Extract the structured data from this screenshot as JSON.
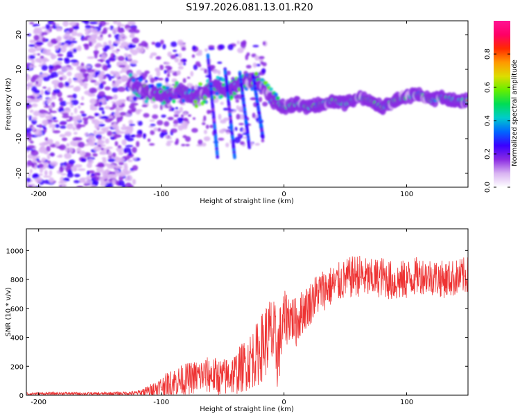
{
  "title": "S197.2026.081.13.01.R20",
  "chart_data": [
    {
      "type": "heatmap",
      "description_id": "spectrogram",
      "xlabel": "Height of straight line (km)",
      "ylabel": "Frequency (Hz)",
      "xlim": [
        -210,
        150
      ],
      "ylim": [
        -24,
        24
      ],
      "xticks": [
        -200,
        -100,
        0,
        100
      ],
      "yticks": [
        -20,
        -10,
        0,
        10,
        20
      ],
      "colorbar": {
        "label": "Normalized spectral amplitude",
        "range": [
          0.0,
          1.0
        ],
        "ticks": [
          0.0,
          0.2,
          0.4,
          0.6,
          0.8
        ],
        "colors": [
          "#ffffff",
          "#d9b3f2",
          "#8a2be2",
          "#3a00ff",
          "#0066ff",
          "#00cccc",
          "#00dd55",
          "#66ee00",
          "#dddd00",
          "#ff9900",
          "#ff2a00",
          "#ff0066",
          "#ff1493"
        ]
      },
      "ridge": {
        "x": [
          -125,
          -115,
          -105,
          -95,
          -85,
          -75,
          -65,
          -55,
          -45,
          -35,
          -25,
          -20,
          -15,
          -10,
          -5,
          0,
          5,
          10,
          20,
          30,
          40,
          50,
          60,
          70,
          80,
          90,
          100,
          110,
          120,
          130,
          140,
          150
        ],
        "y": [
          6,
          4,
          3,
          2,
          4,
          2,
          3,
          5,
          4,
          6,
          7,
          6,
          4,
          1,
          0,
          -1,
          -0.5,
          0,
          -1,
          0,
          1,
          0,
          2,
          1,
          -1,
          1,
          2,
          3,
          1,
          2,
          1,
          1
        ]
      }
    },
    {
      "type": "line",
      "description_id": "snr",
      "xlabel": "Height of straight line (km)",
      "ylabel": "SNR (10 * v/v)",
      "xlim": [
        -210,
        150
      ],
      "ylim": [
        0,
        1150
      ],
      "xticks": [
        -200,
        -100,
        0,
        100
      ],
      "yticks": [
        0,
        200,
        400,
        600,
        800,
        1000
      ],
      "color": "#ee3333",
      "envelope_x": [
        -210,
        -180,
        -150,
        -120,
        -110,
        -100,
        -90,
        -80,
        -70,
        -60,
        -50,
        -40,
        -30,
        -20,
        -15,
        -10,
        -5,
        0,
        5,
        10,
        15,
        20,
        25,
        30,
        40,
        50,
        60,
        70,
        80,
        90,
        100,
        110,
        120,
        130,
        140,
        150
      ],
      "envelope_mean": [
        10,
        12,
        10,
        15,
        30,
        60,
        90,
        110,
        130,
        140,
        120,
        150,
        220,
        300,
        380,
        420,
        300,
        520,
        550,
        500,
        580,
        620,
        680,
        720,
        760,
        800,
        830,
        800,
        820,
        780,
        800,
        830,
        820,
        800,
        810,
        830
      ],
      "envelope_noise": [
        10,
        10,
        10,
        15,
        40,
        70,
        100,
        110,
        120,
        130,
        130,
        150,
        190,
        230,
        260,
        280,
        280,
        200,
        180,
        170,
        160,
        150,
        150,
        150,
        140,
        140,
        150,
        140,
        140,
        140,
        140,
        130,
        130,
        130,
        130,
        130
      ]
    }
  ]
}
